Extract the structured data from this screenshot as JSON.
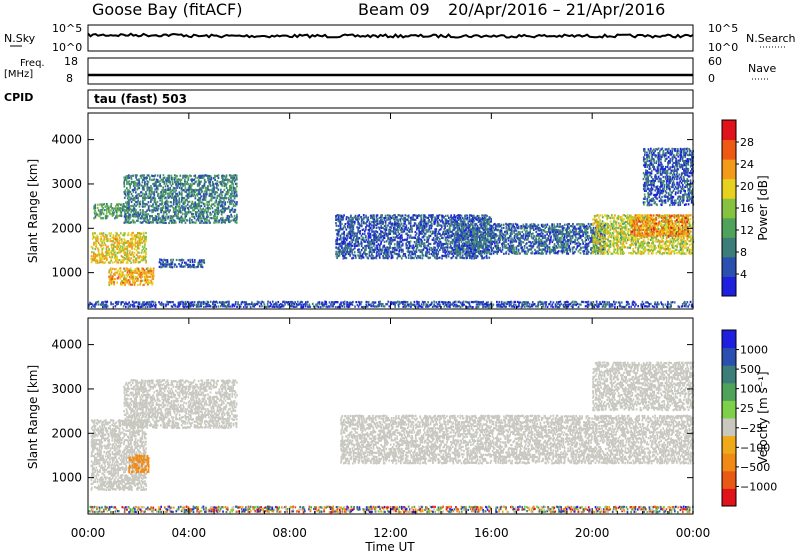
{
  "header": {
    "station": "Goose Bay (fitACF)",
    "beam": "Beam 09",
    "date_range": "20/Apr/2016 – 21/Apr/2016"
  },
  "summary_panels": {
    "nsky_label": "N.Sky",
    "nsky_ticks": [
      "10^5",
      "10^0"
    ],
    "nsearch_label": "N.Search",
    "nsearch_ticks": [
      "10^5",
      "10^0"
    ],
    "freq_label": "Freq.",
    "freq_unit": "[MHz]",
    "freq_ticks": [
      "18",
      "8"
    ],
    "nave_label": "Nave",
    "nave_ticks": [
      "60",
      "0"
    ],
    "cpid_label": "CPID",
    "cpid_value": "tau (fast) 503"
  },
  "colors": {
    "power_scale": [
      "#1f1fe0",
      "#2b4fb0",
      "#3c7d7a",
      "#4fa25a",
      "#86c23f",
      "#e6d21e",
      "#f39a1a",
      "#ee5a14",
      "#e0121a"
    ],
    "velocity_scale": [
      "#1f1fe0",
      "#2b4fb0",
      "#3c7d7a",
      "#4fa25a",
      "#7ed04a",
      "#c8c8c0",
      "#efaa1a",
      "#f08a14",
      "#e85a14",
      "#e0121a"
    ],
    "ground_scatter": "#c8c8c0"
  },
  "chart_data": [
    {
      "type": "heatmap",
      "name": "power",
      "xlabel": "",
      "ylabel": "Slant Range [km]",
      "ylim": [
        180,
        4600
      ],
      "yticks": [
        "1000",
        "2000",
        "3000",
        "4000"
      ],
      "colorbar_label": "Power [dB]",
      "colorbar_ticks": [
        "4",
        "8",
        "12",
        "16",
        "20",
        "24",
        "28"
      ],
      "colorbar_range": [
        0,
        32
      ],
      "xlim": [
        0,
        24
      ],
      "x_unit": "hours UT",
      "regions": [
        {
          "t": [
            0.1,
            2.3
          ],
          "r": [
            1200,
            1900
          ],
          "level": 20
        },
        {
          "t": [
            0.8,
            2.6
          ],
          "r": [
            700,
            1100
          ],
          "level": 22
        },
        {
          "t": [
            0.2,
            1.6
          ],
          "r": [
            2200,
            2550
          ],
          "level": 12
        },
        {
          "t": [
            1.4,
            5.9
          ],
          "r": [
            2100,
            3200
          ],
          "level": 9
        },
        {
          "t": [
            2.8,
            4.6
          ],
          "r": [
            1100,
            1300
          ],
          "level": 6
        },
        {
          "t": [
            9.8,
            16.0
          ],
          "r": [
            1300,
            2300
          ],
          "level": 6
        },
        {
          "t": [
            14.5,
            20.5
          ],
          "r": [
            1400,
            2100
          ],
          "level": 7
        },
        {
          "t": [
            20.0,
            24.0
          ],
          "r": [
            1400,
            2300
          ],
          "level": 18
        },
        {
          "t": [
            21.5,
            23.8
          ],
          "r": [
            1800,
            2300
          ],
          "level": 24
        },
        {
          "t": [
            22.0,
            24.0
          ],
          "r": [
            2500,
            3800
          ],
          "level": 6
        },
        {
          "t": [
            0.0,
            24.0
          ],
          "r": [
            200,
            350
          ],
          "level": 5
        }
      ]
    },
    {
      "type": "heatmap",
      "name": "velocity",
      "xlabel": "Time UT",
      "ylabel": "Slant Range [km]",
      "ylim": [
        180,
        4600
      ],
      "yticks": [
        "1000",
        "2000",
        "3000",
        "4000"
      ],
      "xticks": [
        "00:00",
        "04:00",
        "08:00",
        "12:00",
        "16:00",
        "20:00",
        "00:00"
      ],
      "colorbar_label": "Velocity [m s⁻¹]",
      "colorbar_ticks": [
        "1000",
        "500",
        "100",
        "25",
        "−25",
        "−100",
        "−500",
        "−1000"
      ],
      "xlim": [
        0,
        24
      ],
      "regions": [
        {
          "t": [
            0.1,
            2.3
          ],
          "r": [
            700,
            2300
          ],
          "v": "ground"
        },
        {
          "t": [
            1.4,
            5.9
          ],
          "r": [
            2100,
            3200
          ],
          "v": "ground"
        },
        {
          "t": [
            10.0,
            24.0
          ],
          "r": [
            1300,
            2400
          ],
          "v": "ground"
        },
        {
          "t": [
            20.0,
            24.0
          ],
          "r": [
            2500,
            3600
          ],
          "v": "ground"
        },
        {
          "t": [
            1.6,
            2.4
          ],
          "r": [
            1100,
            1500
          ],
          "v": -400
        },
        {
          "t": [
            0.0,
            24.0
          ],
          "r": [
            200,
            350
          ],
          "v": "mixed"
        }
      ]
    }
  ]
}
